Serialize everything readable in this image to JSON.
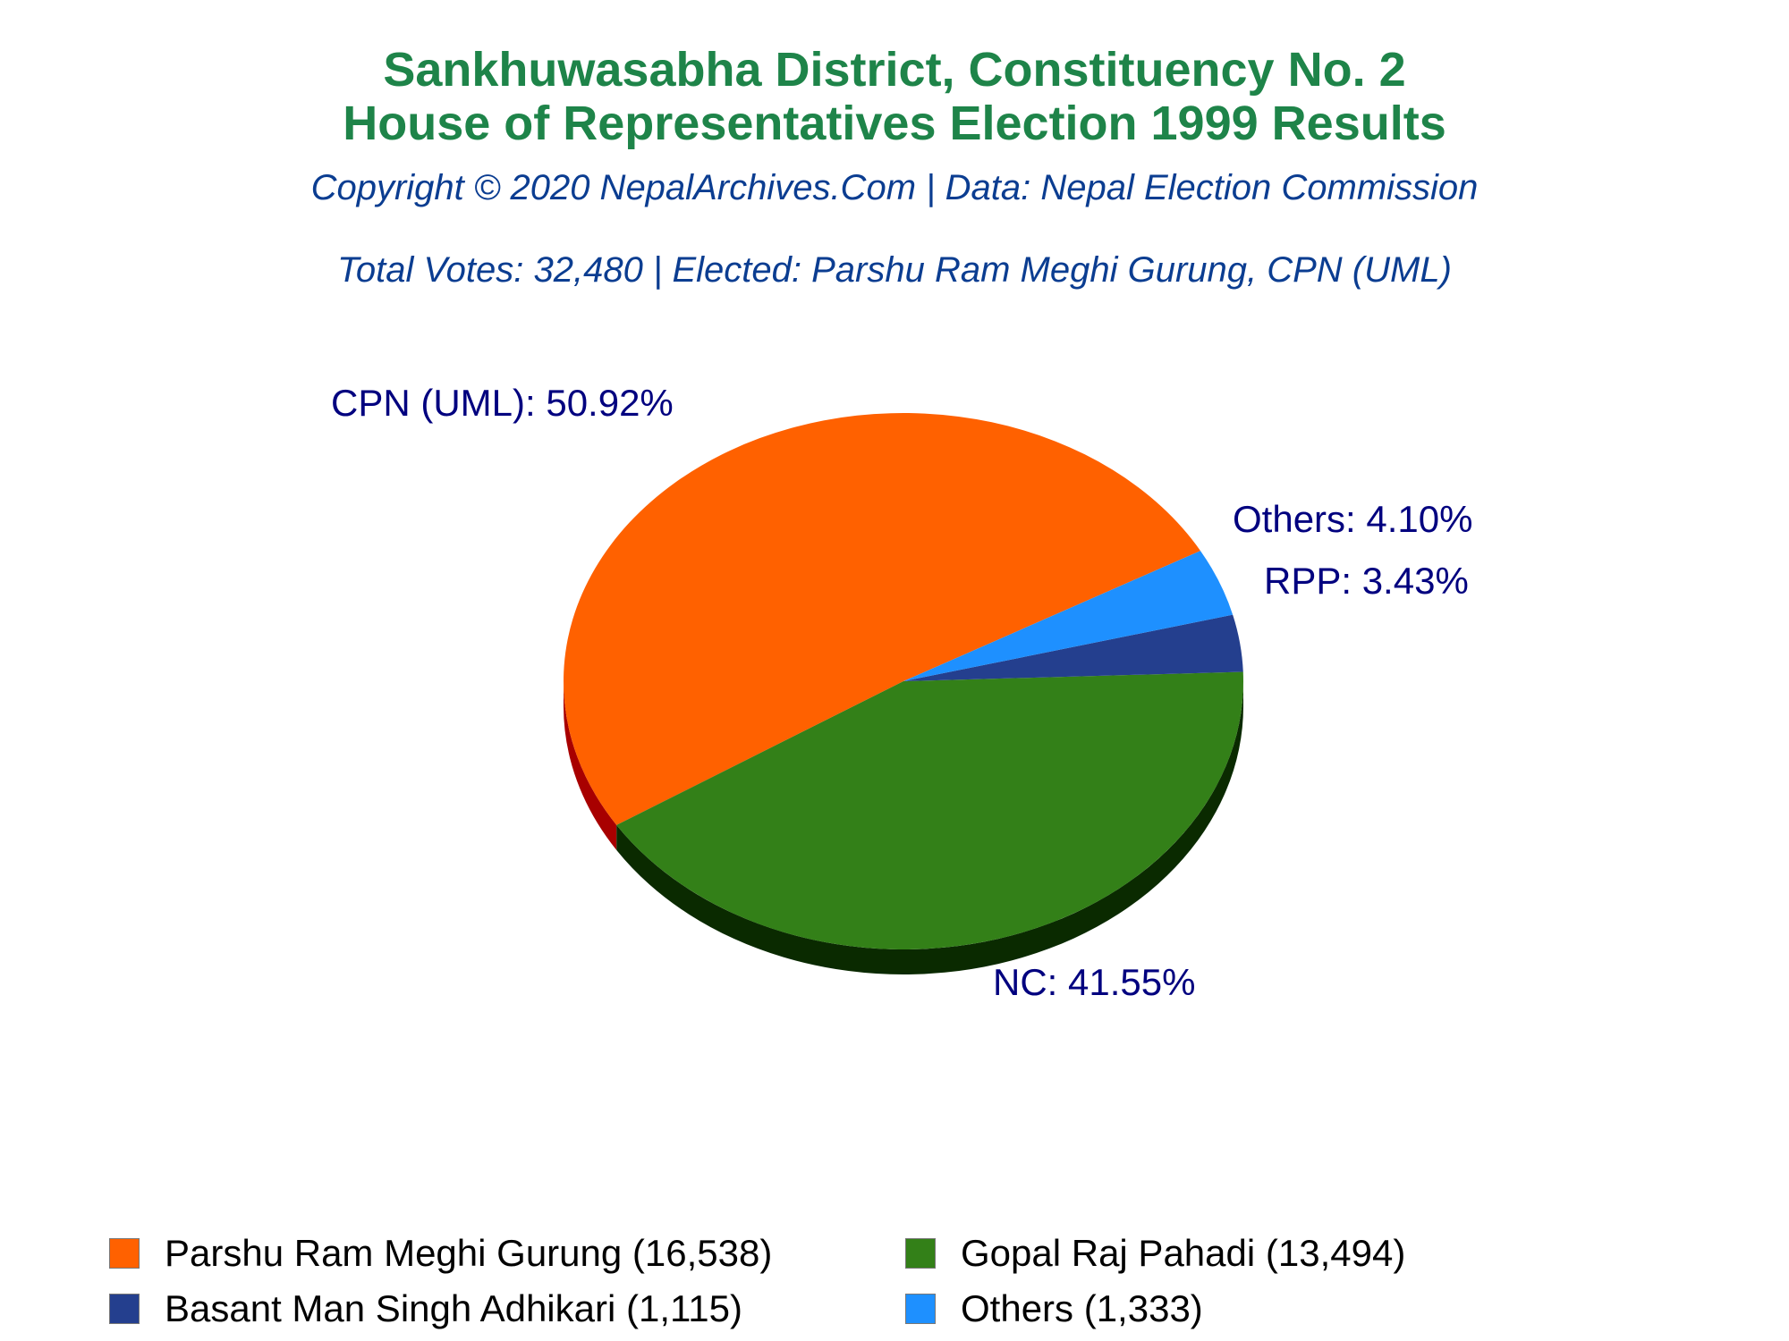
{
  "title_line1": "Sankhuwasabha District, Constituency No. 2",
  "title_line2": "House of Representatives Election 1999 Results",
  "subtitle_copyright": "Copyright © 2020 NepalArchives.Com | Data: Nepal Election Commission",
  "subtitle_totals": "Total Votes: 32,480 | Elected: Parshu Ram Meghi Gurung, CPN (UML)",
  "chart_data": {
    "type": "pie",
    "title": "Sankhuwasabha District, Constituency No. 2 House of Representatives Election 1999 Results",
    "slices": [
      {
        "party": "CPN (UML)",
        "label": "CPN (UML): 50.92%",
        "percent": 50.92,
        "color": "#ff6100",
        "side_color": "#a80000"
      },
      {
        "party": "NC",
        "label": "NC: 41.55%",
        "percent": 41.55,
        "color": "#338018",
        "side_color": "#0a2a00"
      },
      {
        "party": "RPP",
        "label": "RPP: 3.43%",
        "percent": 3.43,
        "color": "#243f8e",
        "side_color": "#10204a"
      },
      {
        "party": "Others",
        "label": "Others: 4.10%",
        "percent": 4.1,
        "color": "#1e90ff",
        "side_color": "#0d4f99"
      }
    ],
    "legend": [
      {
        "label": "Parshu Ram Meghi Gurung (16,538)",
        "color": "#ff6100"
      },
      {
        "label": "Gopal Raj Pahadi (13,494)",
        "color": "#338018"
      },
      {
        "label": "Basant Man Singh Adhikari (1,115)",
        "color": "#243f8e"
      },
      {
        "label": "Others (1,333)",
        "color": "#1e90ff"
      }
    ],
    "legend_placement": "bottom",
    "label_color": "#00007f"
  }
}
